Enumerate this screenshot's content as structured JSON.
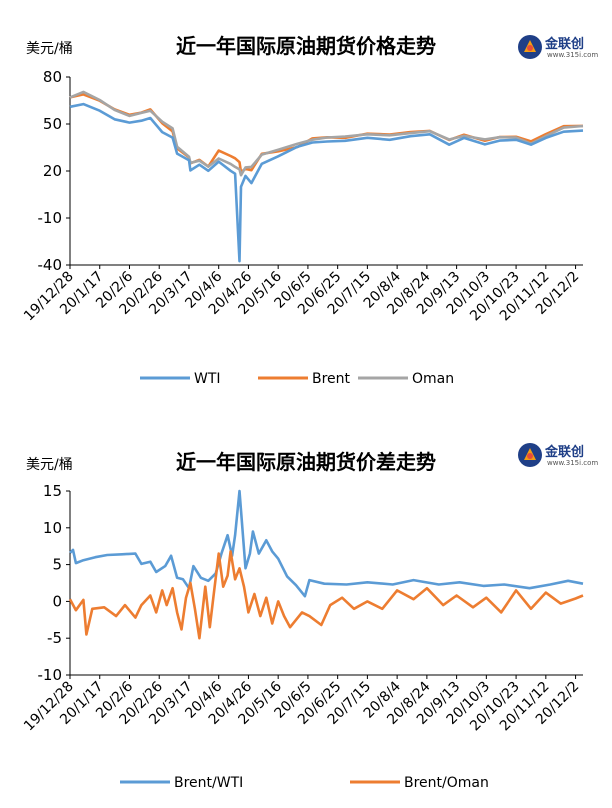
{
  "chart_data": [
    {
      "type": "line",
      "title": "近一年国际原油期货价格走势",
      "ylabel": "美元/桶",
      "ylim": [
        -40,
        80
      ],
      "yticks": [
        -40,
        -10,
        20,
        50,
        80
      ],
      "xticks": [
        "19/12/28",
        "20/1/17",
        "20/2/6",
        "20/2/26",
        "20/3/17",
        "20/4/6",
        "20/4/26",
        "20/5/16",
        "20/6/5",
        "20/6/25",
        "20/7/15",
        "20/8/4",
        "20/8/24",
        "20/9/13",
        "20/10/3",
        "20/10/23",
        "20/11/12",
        "20/12/2"
      ],
      "x_range": [
        "2019-12-28",
        "2020-12-07"
      ],
      "grid": false,
      "legend_position": "bottom",
      "series": [
        {
          "name": "WTI",
          "color": "#5b9bd5",
          "points": [
            [
              "2019-12-28",
              61
            ],
            [
              "2020-01-06",
              62.7
            ],
            [
              "2020-01-17",
              58.5
            ],
            [
              "2020-01-27",
              53
            ],
            [
              "2020-02-06",
              50.9
            ],
            [
              "2020-02-14",
              52.1
            ],
            [
              "2020-02-20",
              53.8
            ],
            [
              "2020-02-28",
              44.8
            ],
            [
              "2020-03-06",
              41.3
            ],
            [
              "2020-03-09",
              31.1
            ],
            [
              "2020-03-17",
              26.9
            ],
            [
              "2020-03-18",
              20.4
            ],
            [
              "2020-03-24",
              24
            ],
            [
              "2020-03-30",
              20.1
            ],
            [
              "2020-04-06",
              26
            ],
            [
              "2020-04-14",
              20.1
            ],
            [
              "2020-04-17",
              18.3
            ],
            [
              "2020-04-20",
              -37.6
            ],
            [
              "2020-04-21",
              10
            ],
            [
              "2020-04-24",
              16.9
            ],
            [
              "2020-04-28",
              12.3
            ],
            [
              "2020-05-05",
              24.6
            ],
            [
              "2020-05-16",
              29.4
            ],
            [
              "2020-05-29",
              35.5
            ],
            [
              "2020-06-08",
              38.2
            ],
            [
              "2020-06-18",
              38.8
            ],
            [
              "2020-06-30",
              39.3
            ],
            [
              "2020-07-15",
              41.2
            ],
            [
              "2020-07-30",
              39.9
            ],
            [
              "2020-08-13",
              42.2
            ],
            [
              "2020-08-26",
              43.4
            ],
            [
              "2020-09-08",
              36.8
            ],
            [
              "2020-09-18",
              41.1
            ],
            [
              "2020-10-02",
              37
            ],
            [
              "2020-10-12",
              39.4
            ],
            [
              "2020-10-23",
              39.9
            ],
            [
              "2020-11-02",
              36.8
            ],
            [
              "2020-11-12",
              41.1
            ],
            [
              "2020-11-24",
              45.1
            ],
            [
              "2020-12-07",
              45.8
            ]
          ]
        },
        {
          "name": "Brent",
          "color": "#ed7d31",
          "points": [
            [
              "2019-12-28",
              67
            ],
            [
              "2020-01-06",
              68.9
            ],
            [
              "2020-01-17",
              64.9
            ],
            [
              "2020-01-27",
              59.3
            ],
            [
              "2020-02-06",
              55.9
            ],
            [
              "2020-02-14",
              57.3
            ],
            [
              "2020-02-20",
              59.3
            ],
            [
              "2020-02-28",
              50.5
            ],
            [
              "2020-03-06",
              45.3
            ],
            [
              "2020-03-09",
              34.4
            ],
            [
              "2020-03-17",
              28.7
            ],
            [
              "2020-03-18",
              24.9
            ],
            [
              "2020-03-24",
              27.1
            ],
            [
              "2020-03-30",
              22.8
            ],
            [
              "2020-04-06",
              33
            ],
            [
              "2020-04-14",
              29.6
            ],
            [
              "2020-04-17",
              28.1
            ],
            [
              "2020-04-20",
              25.6
            ],
            [
              "2020-04-21",
              19.3
            ],
            [
              "2020-04-24",
              21.4
            ],
            [
              "2020-04-28",
              20.5
            ],
            [
              "2020-05-05",
              31
            ],
            [
              "2020-05-16",
              32.5
            ],
            [
              "2020-05-29",
              35.3
            ],
            [
              "2020-06-08",
              40.8
            ],
            [
              "2020-06-18",
              41.5
            ],
            [
              "2020-06-30",
              41.2
            ],
            [
              "2020-07-15",
              43.8
            ],
            [
              "2020-07-30",
              43.3
            ],
            [
              "2020-08-13",
              44.9
            ],
            [
              "2020-08-26",
              45.6
            ],
            [
              "2020-09-08",
              39.8
            ],
            [
              "2020-09-18",
              43.2
            ],
            [
              "2020-10-02",
              39.3
            ],
            [
              "2020-10-12",
              41.7
            ],
            [
              "2020-10-23",
              41.8
            ],
            [
              "2020-11-02",
              38.9
            ],
            [
              "2020-11-12",
              43.5
            ],
            [
              "2020-11-24",
              48.6
            ],
            [
              "2020-12-07",
              48.8
            ]
          ]
        },
        {
          "name": "Oman",
          "color": "#a5a5a5",
          "points": [
            [
              "2019-12-28",
              67
            ],
            [
              "2020-01-06",
              70.5
            ],
            [
              "2020-01-17",
              65.3
            ],
            [
              "2020-01-27",
              59
            ],
            [
              "2020-02-06",
              55.2
            ],
            [
              "2020-02-14",
              57.1
            ],
            [
              "2020-02-20",
              58.5
            ],
            [
              "2020-02-28",
              51.5
            ],
            [
              "2020-03-06",
              47.2
            ],
            [
              "2020-03-09",
              35.5
            ],
            [
              "2020-03-17",
              29.1
            ],
            [
              "2020-03-18",
              25.2
            ],
            [
              "2020-03-24",
              26.6
            ],
            [
              "2020-03-30",
              22.8
            ],
            [
              "2020-04-06",
              28
            ],
            [
              "2020-04-14",
              24.5
            ],
            [
              "2020-04-17",
              22.6
            ],
            [
              "2020-04-20",
              21
            ],
            [
              "2020-04-21",
              17.3
            ],
            [
              "2020-04-24",
              22.3
            ],
            [
              "2020-04-28",
              22.6
            ],
            [
              "2020-05-05",
              30.5
            ],
            [
              "2020-05-16",
              33.5
            ],
            [
              "2020-05-29",
              37.4
            ],
            [
              "2020-06-08",
              40
            ],
            [
              "2020-06-18",
              41.4
            ],
            [
              "2020-06-30",
              42
            ],
            [
              "2020-07-15",
              43.4
            ],
            [
              "2020-07-30",
              42.8
            ],
            [
              "2020-08-13",
              44.2
            ],
            [
              "2020-08-26",
              45.4
            ],
            [
              "2020-09-08",
              40.1
            ],
            [
              "2020-09-18",
              42.4
            ],
            [
              "2020-10-02",
              40.2
            ],
            [
              "2020-10-12",
              41.6
            ],
            [
              "2020-10-23",
              41.3
            ],
            [
              "2020-11-02",
              37.4
            ],
            [
              "2020-11-12",
              42.3
            ],
            [
              "2020-11-24",
              47.7
            ],
            [
              "2020-12-07",
              48.7
            ]
          ]
        }
      ]
    },
    {
      "type": "line",
      "title": "近一年国际原油期货价差走势",
      "ylabel": "美元/桶",
      "ylim": [
        -10,
        15
      ],
      "yticks": [
        -10,
        -5,
        0,
        5,
        10,
        15
      ],
      "xticks": [
        "19/12/28",
        "20/1/17",
        "20/2/6",
        "20/2/26",
        "20/3/17",
        "20/4/6",
        "20/4/26",
        "20/5/16",
        "20/6/5",
        "20/6/25",
        "20/7/15",
        "20/8/4",
        "20/8/24",
        "20/9/13",
        "20/10/3",
        "20/10/23",
        "20/11/12",
        "20/12/2"
      ],
      "x_range": [
        "2019-12-28",
        "2020-12-07"
      ],
      "grid": false,
      "legend_position": "bottom",
      "series": [
        {
          "name": "Brent/WTI",
          "color": "#5b9bd5",
          "points": [
            [
              "2019-12-28",
              6.6
            ],
            [
              "2019-12-30",
              7
            ],
            [
              "2020-01-01",
              5.2
            ],
            [
              "2020-01-06",
              5.6
            ],
            [
              "2020-01-14",
              6
            ],
            [
              "2020-01-22",
              6.3
            ],
            [
              "2020-02-01",
              6.4
            ],
            [
              "2020-02-10",
              6.5
            ],
            [
              "2020-02-14",
              5.1
            ],
            [
              "2020-02-20",
              5.4
            ],
            [
              "2020-02-24",
              4
            ],
            [
              "2020-03-01",
              4.8
            ],
            [
              "2020-03-05",
              6.2
            ],
            [
              "2020-03-09",
              3.2
            ],
            [
              "2020-03-13",
              3
            ],
            [
              "2020-03-17",
              1.8
            ],
            [
              "2020-03-20",
              4.8
            ],
            [
              "2020-03-25",
              3.2
            ],
            [
              "2020-03-30",
              2.8
            ],
            [
              "2020-04-04",
              3.8
            ],
            [
              "2020-04-08",
              6.6
            ],
            [
              "2020-04-12",
              9
            ],
            [
              "2020-04-15",
              6.2
            ],
            [
              "2020-04-17",
              9
            ],
            [
              "2020-04-20",
              15
            ],
            [
              "2020-04-24",
              4.5
            ],
            [
              "2020-04-27",
              6.5
            ],
            [
              "2020-04-29",
              9.5
            ],
            [
              "2020-05-03",
              6.5
            ],
            [
              "2020-05-08",
              8.3
            ],
            [
              "2020-05-12",
              6.8
            ],
            [
              "2020-05-16",
              5.8
            ],
            [
              "2020-05-22",
              3.4
            ],
            [
              "2020-05-28",
              2.2
            ],
            [
              "2020-06-03",
              0.7
            ],
            [
              "2020-06-06",
              2.9
            ],
            [
              "2020-06-16",
              2.4
            ],
            [
              "2020-07-01",
              2.3
            ],
            [
              "2020-07-15",
              2.6
            ],
            [
              "2020-08-01",
              2.3
            ],
            [
              "2020-08-15",
              2.9
            ],
            [
              "2020-09-01",
              2.3
            ],
            [
              "2020-09-15",
              2.6
            ],
            [
              "2020-10-01",
              2.1
            ],
            [
              "2020-10-15",
              2.3
            ],
            [
              "2020-11-01",
              1.8
            ],
            [
              "2020-11-15",
              2.3
            ],
            [
              "2020-11-27",
              2.8
            ],
            [
              "2020-12-07",
              2.4
            ]
          ]
        },
        {
          "name": "Brent/Oman",
          "color": "#ed7d31",
          "points": [
            [
              "2019-12-28",
              0.3
            ],
            [
              "2020-01-01",
              -1.2
            ],
            [
              "2020-01-06",
              0.2
            ],
            [
              "2020-01-08",
              -4.5
            ],
            [
              "2020-01-12",
              -1
            ],
            [
              "2020-01-20",
              -0.8
            ],
            [
              "2020-01-28",
              -2
            ],
            [
              "2020-02-03",
              -0.5
            ],
            [
              "2020-02-10",
              -2.2
            ],
            [
              "2020-02-14",
              -0.5
            ],
            [
              "2020-02-20",
              0.8
            ],
            [
              "2020-02-24",
              -1.5
            ],
            [
              "2020-02-28",
              1.5
            ],
            [
              "2020-03-02",
              -0.5
            ],
            [
              "2020-03-06",
              1.8
            ],
            [
              "2020-03-09",
              -1.5
            ],
            [
              "2020-03-12",
              -3.8
            ],
            [
              "2020-03-15",
              0.5
            ],
            [
              "2020-03-18",
              2.5
            ],
            [
              "2020-03-21",
              -1
            ],
            [
              "2020-03-24",
              -5
            ],
            [
              "2020-03-28",
              2
            ],
            [
              "2020-03-31",
              -3.5
            ],
            [
              "2020-04-03",
              1.5
            ],
            [
              "2020-04-06",
              6.5
            ],
            [
              "2020-04-09",
              2
            ],
            [
              "2020-04-12",
              3.5
            ],
            [
              "2020-04-14",
              6.8
            ],
            [
              "2020-04-17",
              3
            ],
            [
              "2020-04-20",
              4.5
            ],
            [
              "2020-04-23",
              2
            ],
            [
              "2020-04-26",
              -1.5
            ],
            [
              "2020-04-30",
              1
            ],
            [
              "2020-05-04",
              -2
            ],
            [
              "2020-05-08",
              0.5
            ],
            [
              "2020-05-12",
              -3
            ],
            [
              "2020-05-16",
              0
            ],
            [
              "2020-05-20",
              -2
            ],
            [
              "2020-05-24",
              -3.5
            ],
            [
              "2020-06-01",
              -1.5
            ],
            [
              "2020-06-06",
              -2
            ],
            [
              "2020-06-14",
              -3.2
            ],
            [
              "2020-06-20",
              -0.5
            ],
            [
              "2020-06-28",
              0.5
            ],
            [
              "2020-07-06",
              -1
            ],
            [
              "2020-07-15",
              0
            ],
            [
              "2020-07-25",
              -1
            ],
            [
              "2020-08-04",
              1.5
            ],
            [
              "2020-08-15",
              0.3
            ],
            [
              "2020-08-24",
              1.8
            ],
            [
              "2020-09-04",
              -0.5
            ],
            [
              "2020-09-13",
              0.8
            ],
            [
              "2020-09-24",
              -0.8
            ],
            [
              "2020-10-03",
              0.5
            ],
            [
              "2020-10-13",
              -1.5
            ],
            [
              "2020-10-23",
              1.5
            ],
            [
              "2020-11-02",
              -1
            ],
            [
              "2020-11-12",
              1.2
            ],
            [
              "2020-11-22",
              -0.3
            ],
            [
              "2020-12-02",
              0.4
            ],
            [
              "2020-12-07",
              0.8
            ]
          ]
        }
      ]
    }
  ],
  "logo": {
    "name": "金联创",
    "url": "www.315i.com"
  }
}
